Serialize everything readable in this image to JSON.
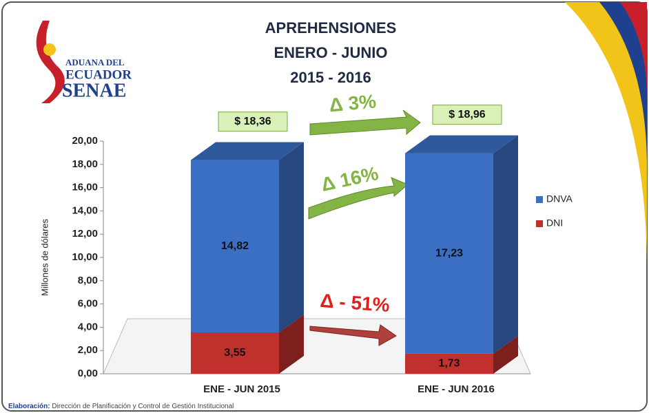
{
  "chart_data": {
    "type": "bar3d-stacked",
    "title": [
      "APREHENSIONES",
      "ENERO - JUNIO",
      "2015 - 2016"
    ],
    "logo": [
      "ADUANA DEL",
      "ECUADOR",
      "SENAE"
    ],
    "y_label": "Millones  de dólares",
    "categories": [
      "ENE - JUN 2015",
      "ENE - JUN 2016"
    ],
    "series": [
      {
        "name": "DNVA",
        "color": "#3a6fc4",
        "values": [
          14.82,
          17.23
        ],
        "value_labels": [
          "14,82",
          "17,23"
        ]
      },
      {
        "name": "DNI",
        "color": "#c0302c",
        "values": [
          3.55,
          1.73
        ],
        "value_labels": [
          "3,55",
          "1,73"
        ]
      }
    ],
    "totals": {
      "values": [
        18.36,
        18.96
      ],
      "value_labels": [
        "$ 18,36",
        "$ 18,96"
      ]
    },
    "annotations": [
      "Δ 3%",
      "Δ 16%",
      "Δ - 51%"
    ],
    "ylim": [
      0,
      20
    ],
    "yticks": [
      {
        "value": 0,
        "label": "0,00"
      },
      {
        "value": 2,
        "label": "2,00"
      },
      {
        "value": 4,
        "label": "4,00"
      },
      {
        "value": 6,
        "label": "6,00"
      },
      {
        "value": 8,
        "label": "8,00"
      },
      {
        "value": 10,
        "label": "10,00"
      },
      {
        "value": 12,
        "label": "12,00"
      },
      {
        "value": 14,
        "label": "14,00"
      },
      {
        "value": 16,
        "label": "16,00"
      },
      {
        "value": 18,
        "label": "18,00"
      },
      {
        "value": 20,
        "label": "20,00"
      }
    ],
    "legend": "right",
    "footer": {
      "bold": "Elaboración:",
      "text": "Dirección de Planificación y Control de Gestión Institucional"
    }
  }
}
